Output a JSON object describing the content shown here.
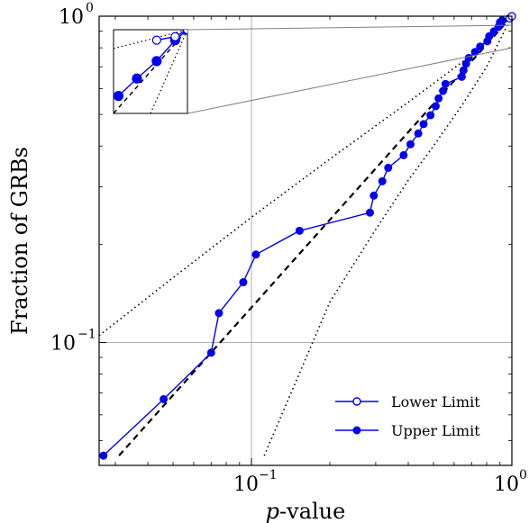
{
  "chart_data": {
    "type": "scatter",
    "title": "",
    "xlabel": {
      "italic": "p",
      "rest": "-value"
    },
    "ylabel": "Fraction of GRBs",
    "xscale": "log",
    "yscale": "log",
    "xlim": [
      0.026,
      1.0
    ],
    "ylim": [
      0.042,
      1.0
    ],
    "grid": "at major decades",
    "xticks": [
      {
        "value": 0.1,
        "base": "10",
        "exp": "−1"
      },
      {
        "value": 1.0,
        "base": "10",
        "exp": "0"
      }
    ],
    "yticks": [
      {
        "value": 0.1,
        "base": "10",
        "exp": "−1"
      },
      {
        "value": 1.0,
        "base": "10",
        "exp": "0"
      }
    ],
    "legend": {
      "position": "bottom-right",
      "entries": [
        {
          "label": "Lower Limit",
          "marker": "open-circle"
        },
        {
          "label": "Upper Limit",
          "marker": "filled-circle"
        }
      ]
    },
    "colors": {
      "series": "#0000ee",
      "reference": "#000000",
      "grid": "#b0b0b0"
    },
    "series": [
      {
        "name": "Upper Limit",
        "marker": "filled-circle",
        "x": [
          0.027,
          0.046,
          0.07,
          0.075,
          0.093,
          0.104,
          0.153,
          0.285,
          0.295,
          0.318,
          0.335,
          0.384,
          0.408,
          0.437,
          0.458,
          0.487,
          0.51,
          0.523,
          0.544,
          0.556,
          0.642,
          0.652,
          0.667,
          0.683,
          0.722,
          0.755,
          0.805,
          0.818,
          0.853,
          0.888,
          0.9,
          0.918,
          0.98,
          1.0
        ],
        "y": [
          0.045,
          0.067,
          0.093,
          0.123,
          0.153,
          0.186,
          0.22,
          0.25,
          0.282,
          0.312,
          0.343,
          0.375,
          0.405,
          0.437,
          0.467,
          0.497,
          0.53,
          0.56,
          0.59,
          0.62,
          0.652,
          0.682,
          0.715,
          0.745,
          0.777,
          0.807,
          0.838,
          0.868,
          0.898,
          0.928,
          0.958,
          0.97,
          0.985,
          1.0
        ]
      },
      {
        "name": "Lower Limit",
        "marker": "open-circle",
        "x": [
          0.98,
          1.0
        ],
        "y": [
          0.985,
          1.0
        ]
      }
    ],
    "reference_lines": [
      {
        "style": "dashed",
        "x": [
          0.031,
          1.0
        ],
        "y": [
          0.045,
          1.0
        ]
      },
      {
        "style": "dotted",
        "x": [
          0.026,
          0.05,
          0.1,
          0.2,
          0.4,
          0.7,
          1.0
        ],
        "y": [
          0.105,
          0.158,
          0.242,
          0.365,
          0.545,
          0.76,
          1.0
        ]
      },
      {
        "style": "dotted",
        "x": [
          0.112,
          0.2,
          0.3,
          0.4,
          0.5,
          0.65,
          0.8,
          1.0
        ],
        "y": [
          0.045,
          0.133,
          0.222,
          0.314,
          0.4,
          0.54,
          0.7,
          1.0
        ]
      }
    ],
    "inset": {
      "zoom_of": "top-right corner",
      "xlim": [
        0.88,
        1.0
      ],
      "ylim": [
        0.88,
        1.0
      ],
      "series": [
        {
          "name": "Upper Limit",
          "marker": "filled-circle",
          "x": [
            0.888,
            0.918,
            0.95,
            0.98,
            1.0
          ],
          "y": [
            0.905,
            0.93,
            0.955,
            0.985,
            1.0
          ]
        },
        {
          "name": "Lower Limit",
          "marker": "open-circle",
          "x": [
            0.95,
            0.98,
            1.0
          ],
          "y": [
            0.985,
            0.99,
            1.0
          ]
        }
      ]
    }
  }
}
